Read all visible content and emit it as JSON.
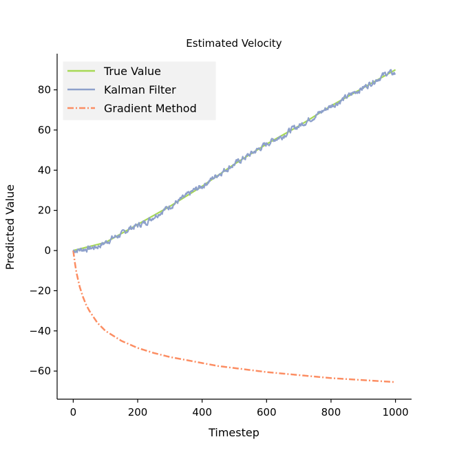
{
  "chart_data": {
    "type": "line",
    "title": "Estimated Velocity",
    "xlabel": "Timestep",
    "ylabel": "Predicted Value",
    "xlim": [
      -50,
      1050
    ],
    "ylim": [
      -74,
      98
    ],
    "xticks": [
      0,
      200,
      400,
      600,
      800,
      1000
    ],
    "yticks": [
      -60,
      -40,
      -20,
      0,
      20,
      40,
      60,
      80
    ],
    "xtick_labels": [
      "0",
      "200",
      "400",
      "600",
      "800",
      "1000"
    ],
    "ytick_labels": [
      "−60",
      "−40",
      "−20",
      "0",
      "20",
      "40",
      "60",
      "80"
    ],
    "grid": false,
    "legend_position": "top-left",
    "series": [
      {
        "name": "True Value",
        "color": "#a6d854",
        "style": "solid",
        "x": [
          0,
          100,
          200,
          300,
          400,
          500,
          600,
          700,
          800,
          900,
          1000
        ],
        "y": [
          0,
          4,
          13,
          22,
          32,
          43,
          53,
          62,
          72,
          81,
          90
        ]
      },
      {
        "name": "Kalman Filter",
        "color": "#8da0cb",
        "style": "solid",
        "x": [
          0,
          25,
          50,
          75,
          100,
          125,
          150,
          175,
          200,
          225,
          250,
          275,
          300,
          325,
          350,
          375,
          400,
          425,
          450,
          475,
          500,
          525,
          550,
          575,
          600,
          625,
          650,
          675,
          700,
          725,
          750,
          775,
          800,
          825,
          850,
          875,
          900,
          925,
          950,
          975,
          1000
        ],
        "y": [
          0,
          0.5,
          1,
          2,
          4,
          6.5,
          8,
          11,
          12.5,
          14,
          17,
          19.5,
          22,
          24.5,
          27,
          30,
          32,
          35,
          38,
          40.5,
          43,
          45.5,
          48,
          50.5,
          53,
          55.5,
          57,
          60,
          62,
          64.5,
          67,
          69.5,
          72,
          74,
          76.5,
          79,
          81,
          83.5,
          86,
          88.5,
          88
        ]
      },
      {
        "name": "Gradient Method",
        "color": "#fc8d62",
        "style": "dashdot",
        "x": [
          0,
          5,
          10,
          20,
          30,
          40,
          50,
          75,
          100,
          150,
          200,
          250,
          300,
          350,
          400,
          450,
          500,
          600,
          700,
          800,
          900,
          1000
        ],
        "y": [
          0,
          -6,
          -11,
          -18,
          -23,
          -27,
          -30,
          -36,
          -40,
          -45,
          -48.5,
          -51,
          -53,
          -54.5,
          -56,
          -57.5,
          -58.5,
          -60.5,
          -62,
          -63.5,
          -64.5,
          -65.5
        ]
      }
    ]
  }
}
